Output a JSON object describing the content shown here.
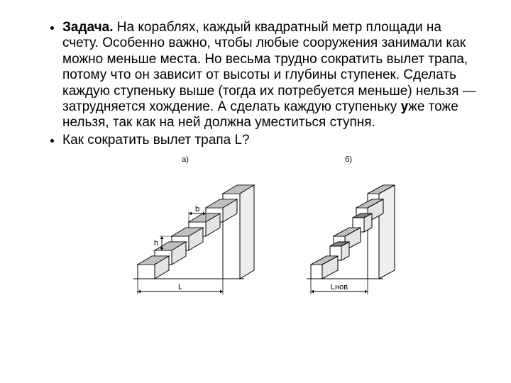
{
  "bullets": [
    {
      "prefix_bold": "Задача.",
      "text_before_uzhe": "  На кораблях, каждый квадратный метр площади на счету. Особенно важно, чтобы любые сооружения занимали как можно меньше места. Но весьма трудно сократить вылет трапа, потому что он зависит от высоты и глубины ступенек. Сделать каждую ступеньку выше (тогда их потребуется меньше) нельзя — затрудняется хождение. А сделать каждую ступеньку ",
      "uzhe_bold": "у",
      "uzhe_rest": "же тоже нельзя, так как на ней должна уместиться ступня."
    },
    {
      "text": "Как сократить вылет трапа L?"
    }
  ],
  "diagrams": {
    "a": {
      "caption": "а)",
      "width_label": "L",
      "step_height_label": "h",
      "step_depth_label": "b",
      "colors": {
        "stroke": "#000000",
        "fill_riser": "#ffffff",
        "fill_shadow": "#bfbfbf",
        "hatch": "#555555"
      }
    },
    "b": {
      "caption": "б)",
      "width_label": "Lнов",
      "colors": {
        "stroke": "#000000",
        "fill_riser": "#ffffff",
        "fill_shadow": "#bfbfbf",
        "hatch": "#555555"
      }
    }
  },
  "layout": {
    "svg_a_w": 210,
    "svg_a_h": 190,
    "svg_b_w": 170,
    "svg_b_h": 190
  }
}
